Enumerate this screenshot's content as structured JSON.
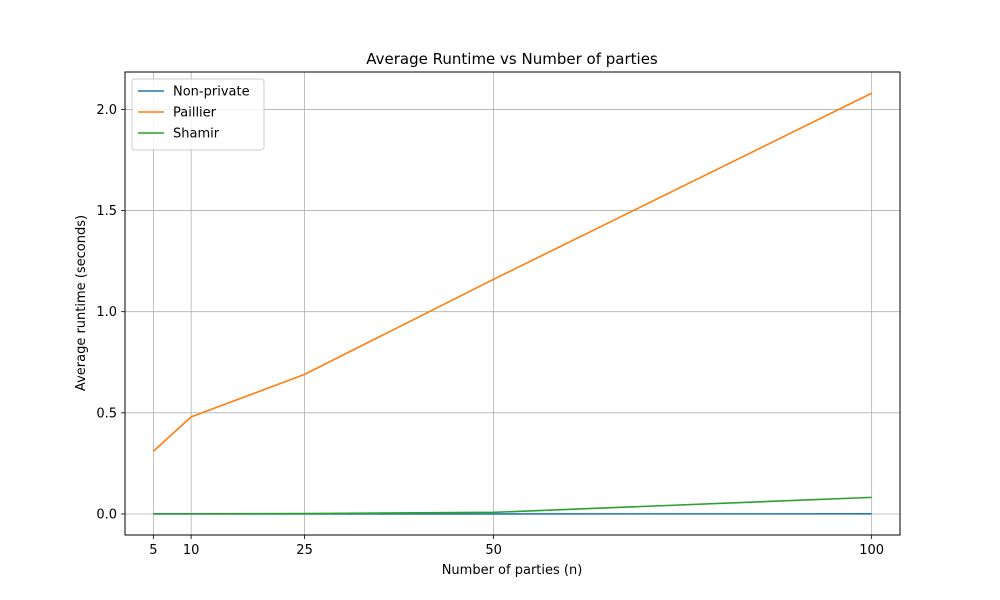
{
  "chart_data": {
    "type": "line",
    "title": "Average Runtime vs Number of parties",
    "xlabel": "Number of parties (n)",
    "ylabel": "Average runtime (seconds)",
    "x": [
      5,
      10,
      25,
      50,
      100
    ],
    "xticks": [
      5,
      10,
      25,
      50,
      100
    ],
    "yticks": [
      0.0,
      0.5,
      1.0,
      1.5,
      2.0
    ],
    "ytick_labels": [
      "0.0",
      "0.5",
      "1.0",
      "1.5",
      "2.0"
    ],
    "xlim": [
      1.25,
      103.75
    ],
    "ylim": [
      -0.104,
      2.185
    ],
    "grid": true,
    "legend_position": "upper-left",
    "series": [
      {
        "name": "Non-private",
        "color": "#1f77b4",
        "values": [
          0.0001,
          0.0001,
          0.0002,
          0.0003,
          0.0005
        ]
      },
      {
        "name": "Paillier",
        "color": "#ff7f0e",
        "values": [
          0.31,
          0.48,
          0.69,
          1.16,
          2.08
        ]
      },
      {
        "name": "Shamir",
        "color": "#2ca02c",
        "values": [
          0.001,
          0.001,
          0.002,
          0.008,
          0.082
        ]
      }
    ]
  }
}
